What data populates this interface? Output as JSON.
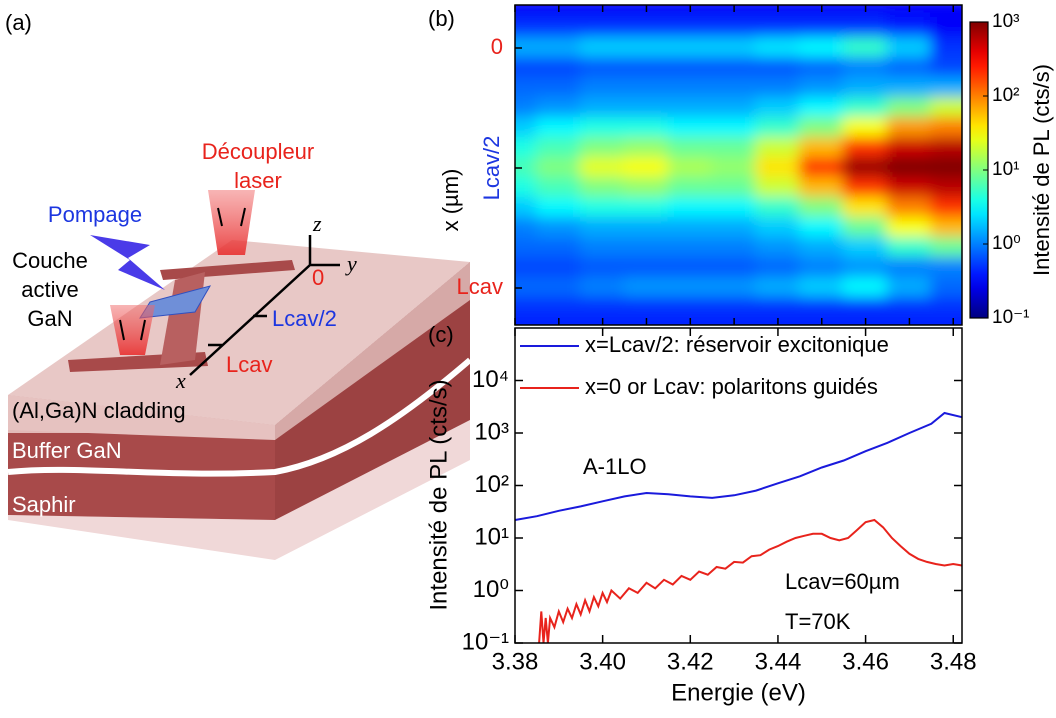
{
  "diagram": {
    "label": "(a)",
    "coupler": [
      "Découpleur",
      "laser"
    ],
    "pump": "Pompage",
    "active_layer": [
      "Couche",
      "active",
      "GaN"
    ],
    "axis_z": "z",
    "axis_y": "y",
    "axis_x": "x",
    "origin": "0",
    "mid": "Lcav/2",
    "end": "Lcav",
    "layers": [
      "(Al,Ga)N cladding",
      "Buffer GaN",
      "Saphir"
    ]
  },
  "chart_data": [
    {
      "type": "heatmap",
      "label": "(b)",
      "ylabel": "x (µm)",
      "xlim": [
        3.38,
        3.482
      ],
      "xticks": [
        3.38,
        3.39,
        3.4,
        3.41,
        3.42,
        3.43,
        3.44,
        3.45,
        3.46,
        3.47,
        3.48
      ],
      "ylim": [
        69.25,
        -10.75
      ],
      "yticks": [
        {
          "value": 0,
          "label": "0"
        },
        {
          "value": 30,
          "label": "Lcav/2"
        },
        {
          "value": 60,
          "label": "Lcav"
        }
      ],
      "ytick_colors": [
        "#e8231c",
        "#1c36e0",
        "#e8231c"
      ],
      "ytick_rotation": [
        0,
        -90,
        0
      ],
      "x": [
        3.38,
        3.39,
        3.4,
        3.41,
        3.42,
        3.43,
        3.44,
        3.45,
        3.46,
        3.47,
        3.48
      ],
      "y": [
        -10,
        -5,
        0,
        5,
        10,
        15,
        20,
        25,
        30,
        35,
        40,
        45,
        50,
        55,
        60,
        65,
        70
      ],
      "z": [
        [
          0.3,
          0.3,
          0.3,
          0.3,
          0.3,
          0.3,
          0.3,
          0.3,
          0.3,
          0.3,
          0.3
        ],
        [
          0.5,
          0.5,
          0.5,
          0.5,
          0.5,
          0.5,
          0.5,
          0.5,
          0.5,
          0.4,
          0.3
        ],
        [
          1.5,
          1.5,
          2,
          2,
          2,
          2,
          2.5,
          3,
          5,
          2,
          0.5
        ],
        [
          0.6,
          0.6,
          0.7,
          0.7,
          0.7,
          0.7,
          0.7,
          0.8,
          1,
          0.8,
          0.6
        ],
        [
          0.8,
          0.8,
          1,
          1,
          1,
          1,
          1,
          1.2,
          1.5,
          1.5,
          1.5
        ],
        [
          1,
          1.2,
          1.5,
          1.5,
          1.5,
          1.5,
          2,
          3,
          5,
          10,
          20
        ],
        [
          2,
          3,
          4,
          4,
          3,
          3,
          5,
          10,
          30,
          80,
          100
        ],
        [
          4,
          6,
          10,
          12,
          8,
          8,
          20,
          60,
          200,
          500,
          600
        ],
        [
          6,
          10,
          25,
          30,
          15,
          12,
          40,
          200,
          800,
          1000,
          1000
        ],
        [
          4,
          6,
          10,
          12,
          8,
          8,
          20,
          60,
          200,
          500,
          600
        ],
        [
          2,
          3,
          4,
          4,
          3,
          3,
          5,
          10,
          40,
          100,
          200
        ],
        [
          1,
          1.2,
          1.5,
          1.5,
          1.5,
          1.5,
          2,
          3,
          8,
          30,
          60
        ],
        [
          0.8,
          0.8,
          1,
          1,
          1,
          1,
          1.2,
          1.5,
          2,
          5,
          8
        ],
        [
          0.6,
          0.6,
          0.7,
          0.7,
          0.7,
          0.7,
          0.8,
          1,
          1.2,
          1,
          1
        ],
        [
          0.8,
          0.8,
          1,
          1.2,
          1.2,
          1.2,
          1.5,
          2,
          3,
          1.5,
          0.8
        ],
        [
          0.5,
          0.5,
          0.5,
          0.5,
          0.5,
          0.5,
          0.5,
          0.5,
          0.5,
          0.5,
          0.5
        ],
        [
          0.4,
          0.4,
          0.4,
          0.4,
          0.4,
          0.4,
          0.4,
          0.4,
          0.4,
          0.4,
          0.4
        ]
      ],
      "colormap": "jet",
      "colorbar": {
        "label": "Intensité de PL (cts/s)",
        "log": true,
        "lim": [
          0.1,
          1000
        ],
        "ticks": [
          {
            "value": 0.1,
            "label": "10⁻¹"
          },
          {
            "value": 1,
            "label": "10⁰"
          },
          {
            "value": 10,
            "label": "10¹"
          },
          {
            "value": 100,
            "label": "10²"
          },
          {
            "value": 1000,
            "label": "10³"
          }
        ]
      }
    },
    {
      "type": "line",
      "label": "(c)",
      "xlabel": "Energie (eV)",
      "ylabel": "Intensité de PL (cts/s)",
      "log_y": true,
      "xlim": [
        3.38,
        3.482
      ],
      "xticks": [
        {
          "value": 3.38,
          "label": "3.38"
        },
        {
          "value": 3.4,
          "label": "3.40"
        },
        {
          "value": 3.42,
          "label": "3.42"
        },
        {
          "value": 3.44,
          "label": "3.44"
        },
        {
          "value": 3.46,
          "label": "3.46"
        },
        {
          "value": 3.48,
          "label": "3.48"
        }
      ],
      "ylim": [
        0.1,
        100000
      ],
      "yticks": [
        {
          "value": 0.1,
          "label": "10⁻¹"
        },
        {
          "value": 1,
          "label": "10⁰"
        },
        {
          "value": 10,
          "label": "10¹"
        },
        {
          "value": 100,
          "label": "10²"
        },
        {
          "value": 1000,
          "label": "10³"
        },
        {
          "value": 10000,
          "label": "10⁴"
        }
      ],
      "legend": "upper left",
      "series": [
        {
          "name": "x=Lcav/2: réservoir excitonique",
          "color": "#1a1adc",
          "x": [
            3.38,
            3.385,
            3.39,
            3.395,
            3.4,
            3.405,
            3.41,
            3.415,
            3.42,
            3.425,
            3.43,
            3.435,
            3.44,
            3.445,
            3.45,
            3.455,
            3.46,
            3.465,
            3.47,
            3.475,
            3.478,
            3.482
          ],
          "values": [
            22,
            26,
            33,
            40,
            50,
            62,
            72,
            68,
            62,
            58,
            65,
            80,
            110,
            150,
            220,
            300,
            450,
            650,
            1000,
            1500,
            2400,
            2000
          ]
        },
        {
          "name": "x=0 or Lcav: polaritons guidés",
          "color": "#e8231c",
          "x": [
            3.3855,
            3.386,
            3.3865,
            3.387,
            3.3875,
            3.388,
            3.389,
            3.39,
            3.391,
            3.392,
            3.393,
            3.394,
            3.395,
            3.396,
            3.397,
            3.398,
            3.399,
            3.4,
            3.401,
            3.402,
            3.404,
            3.406,
            3.408,
            3.41,
            3.412,
            3.414,
            3.416,
            3.418,
            3.42,
            3.422,
            3.424,
            3.426,
            3.428,
            3.43,
            3.432,
            3.434,
            3.436,
            3.438,
            3.44,
            3.442,
            3.444,
            3.446,
            3.448,
            3.45,
            3.452,
            3.454,
            3.456,
            3.458,
            3.46,
            3.462,
            3.464,
            3.466,
            3.468,
            3.47,
            3.472,
            3.474,
            3.476,
            3.478,
            3.48,
            3.482
          ],
          "values": [
            0.1,
            0.4,
            0.1,
            0.3,
            0.1,
            0.3,
            0.2,
            0.4,
            0.25,
            0.45,
            0.3,
            0.55,
            0.35,
            0.65,
            0.4,
            0.75,
            0.5,
            0.9,
            0.6,
            1.0,
            0.7,
            1.1,
            0.9,
            1.4,
            1.1,
            1.6,
            1.3,
            1.9,
            1.6,
            2.3,
            2.0,
            2.8,
            2.6,
            3.5,
            3.4,
            4.5,
            4.7,
            6,
            7,
            8.5,
            10,
            11,
            12,
            12,
            10,
            9,
            10,
            14,
            20,
            22,
            16,
            10,
            7,
            5,
            4,
            3.5,
            3.2,
            3,
            3.2,
            3
          ]
        }
      ],
      "annotations": [
        "A-1LO",
        "Lcav=60µm",
        "T=70K"
      ]
    }
  ]
}
